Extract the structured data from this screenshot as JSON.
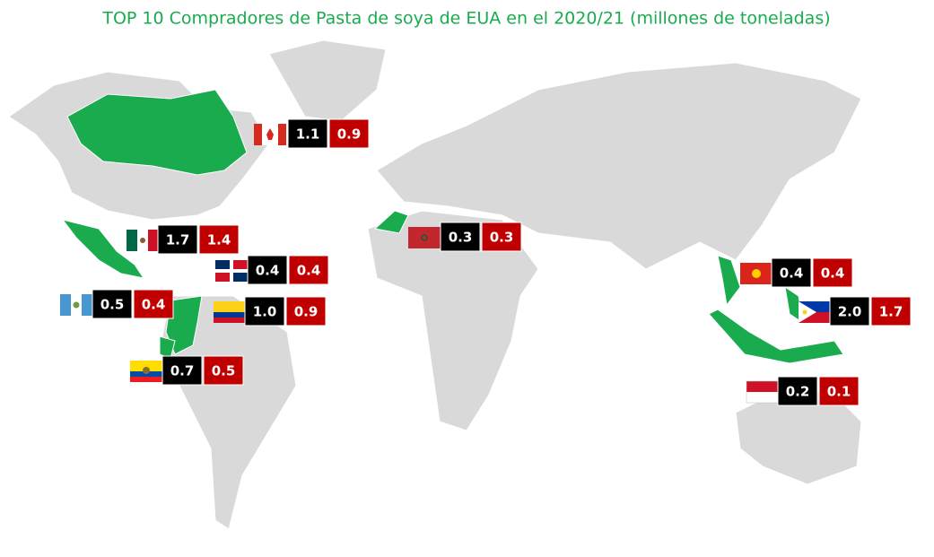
{
  "title": "TOP 10 Compradores de Pasta de soya de EUA en el 2020/21 (millones de toneladas)",
  "markers": [
    {
      "values": [
        1.1,
        0.9
      ]
    },
    {
      "values": [
        1.7,
        1.4
      ]
    },
    {
      "values": [
        0.4,
        0.4
      ]
    },
    {
      "values": [
        0.5,
        0.4
      ]
    },
    {
      "values": [
        1.0,
        0.9
      ],
      "value_labels": [
        "1.0",
        "0.9"
      ]
    },
    {
      "values": [
        0.7,
        0.5
      ]
    },
    {
      "values": [
        0.3,
        0.3
      ]
    },
    {
      "values": [
        0.4,
        0.4
      ]
    },
    {
      "values": [
        2.0,
        1.7
      ],
      "value_labels": [
        "2.0",
        "1.7"
      ]
    },
    {
      "values": [
        0.2,
        0.1
      ]
    }
  ]
}
